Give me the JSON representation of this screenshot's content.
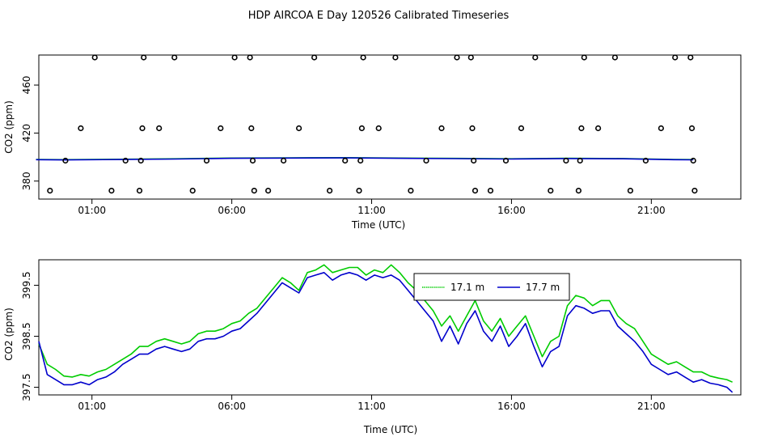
{
  "title": "HDP AIRCOA E  Day 120526  Calibrated Timeseries",
  "colors": {
    "green": "#00cc00",
    "blue": "#0000cc",
    "black": "#000000"
  },
  "chart_data": [
    {
      "type": "scatter",
      "xlabel": "Time (UTC)",
      "ylabel": "CO2 (ppm)",
      "xlim": [
        -0.9,
        24.2
      ],
      "ylim": [
        365,
        485
      ],
      "xticks": [
        1,
        6,
        11,
        16,
        21
      ],
      "xtick_labels": [
        "01:00",
        "06:00",
        "11:00",
        "16:00",
        "21:00"
      ],
      "yticks": [
        380,
        420,
        460
      ],
      "ytick_labels": [
        "380",
        "420",
        "460"
      ],
      "points": [
        {
          "x": -0.5,
          "y": 372
        },
        {
          "x": 0.05,
          "y": 397
        },
        {
          "x": 0.6,
          "y": 424
        },
        {
          "x": 1.1,
          "y": 483
        },
        {
          "x": 1.7,
          "y": 372
        },
        {
          "x": 2.2,
          "y": 397
        },
        {
          "x": 2.7,
          "y": 372
        },
        {
          "x": 2.75,
          "y": 397
        },
        {
          "x": 2.8,
          "y": 424
        },
        {
          "x": 2.85,
          "y": 483
        },
        {
          "x": 3.4,
          "y": 424
        },
        {
          "x": 3.95,
          "y": 483
        },
        {
          "x": 4.6,
          "y": 372
        },
        {
          "x": 5.1,
          "y": 397
        },
        {
          "x": 5.6,
          "y": 424
        },
        {
          "x": 6.1,
          "y": 483
        },
        {
          "x": 6.65,
          "y": 483
        },
        {
          "x": 6.7,
          "y": 424
        },
        {
          "x": 6.75,
          "y": 397
        },
        {
          "x": 6.8,
          "y": 372
        },
        {
          "x": 7.3,
          "y": 372
        },
        {
          "x": 7.85,
          "y": 397
        },
        {
          "x": 8.4,
          "y": 424
        },
        {
          "x": 8.95,
          "y": 483
        },
        {
          "x": 9.5,
          "y": 372
        },
        {
          "x": 10.05,
          "y": 397
        },
        {
          "x": 10.55,
          "y": 372
        },
        {
          "x": 10.6,
          "y": 397
        },
        {
          "x": 10.65,
          "y": 424
        },
        {
          "x": 10.7,
          "y": 483
        },
        {
          "x": 11.25,
          "y": 424
        },
        {
          "x": 11.85,
          "y": 483
        },
        {
          "x": 12.4,
          "y": 372
        },
        {
          "x": 12.95,
          "y": 397
        },
        {
          "x": 13.5,
          "y": 424
        },
        {
          "x": 14.05,
          "y": 483
        },
        {
          "x": 14.55,
          "y": 483
        },
        {
          "x": 14.6,
          "y": 424
        },
        {
          "x": 14.65,
          "y": 397
        },
        {
          "x": 14.7,
          "y": 372
        },
        {
          "x": 15.25,
          "y": 372
        },
        {
          "x": 15.8,
          "y": 397
        },
        {
          "x": 16.35,
          "y": 424
        },
        {
          "x": 16.85,
          "y": 483
        },
        {
          "x": 17.4,
          "y": 372
        },
        {
          "x": 17.95,
          "y": 397
        },
        {
          "x": 18.4,
          "y": 372
        },
        {
          "x": 18.45,
          "y": 397
        },
        {
          "x": 18.5,
          "y": 424
        },
        {
          "x": 18.6,
          "y": 483
        },
        {
          "x": 19.1,
          "y": 424
        },
        {
          "x": 19.7,
          "y": 483
        },
        {
          "x": 20.25,
          "y": 372
        },
        {
          "x": 20.8,
          "y": 397
        },
        {
          "x": 21.35,
          "y": 424
        },
        {
          "x": 21.85,
          "y": 483
        },
        {
          "x": 22.4,
          "y": 483
        },
        {
          "x": 22.45,
          "y": 424
        },
        {
          "x": 22.5,
          "y": 397
        },
        {
          "x": 22.55,
          "y": 372
        }
      ],
      "series": [
        {
          "color": "#00cc00",
          "x": [
            -1.0,
            0,
            2,
            4,
            6,
            8,
            10,
            12,
            14,
            16,
            18,
            20,
            21.8,
            22.5
          ],
          "y": [
            398,
            397.8,
            398.2,
            398.6,
            399.2,
            399.4,
            399.5,
            399.2,
            398.9,
            398.6,
            399,
            398.8,
            398,
            397.9
          ]
        },
        {
          "color": "#0000cc",
          "x": [
            -1.0,
            0,
            2,
            4,
            6,
            8,
            10,
            12,
            14,
            16,
            18,
            20,
            21.8,
            22.5
          ],
          "y": [
            397.8,
            397.6,
            398,
            398.4,
            399,
            399.2,
            399.3,
            399,
            398.7,
            398.4,
            398.8,
            398.6,
            397.8,
            397.7
          ]
        }
      ]
    },
    {
      "type": "line",
      "xlabel": "Time (UTC)",
      "ylabel": "CO2 (ppm)",
      "xlim": [
        -0.9,
        24.2
      ],
      "ylim": [
        397.35,
        400.0
      ],
      "xticks": [
        1,
        6,
        11,
        16,
        21
      ],
      "xtick_labels": [
        "01:00",
        "06:00",
        "11:00",
        "16:00",
        "21:00"
      ],
      "yticks": [
        397.5,
        398.5,
        399.5
      ],
      "ytick_labels": [
        "397.5",
        "398.5",
        "399.5"
      ],
      "legend": {
        "position": "top-right",
        "entries": [
          {
            "label": "17.1 m",
            "color": "#00cc00"
          },
          {
            "label": "17.7 m",
            "color": "#0000cc"
          }
        ]
      },
      "series": [
        {
          "name": "17.1 m",
          "color": "#00cc00",
          "x": [
            -0.9,
            -0.6,
            -0.3,
            0,
            0.3,
            0.6,
            0.9,
            1.2,
            1.5,
            1.8,
            2.1,
            2.4,
            2.7,
            3.0,
            3.3,
            3.6,
            3.9,
            4.2,
            4.5,
            4.8,
            5.1,
            5.4,
            5.7,
            6.0,
            6.3,
            6.6,
            6.9,
            7.2,
            7.5,
            7.8,
            8.1,
            8.4,
            8.7,
            9.0,
            9.3,
            9.6,
            9.9,
            10.2,
            10.5,
            10.8,
            11.1,
            11.4,
            11.7,
            12.0,
            12.3,
            12.6,
            12.9,
            13.2,
            13.5,
            13.8,
            14.1,
            14.4,
            14.7,
            15.0,
            15.3,
            15.6,
            15.9,
            16.2,
            16.5,
            16.8,
            17.1,
            17.4,
            17.7,
            18.0,
            18.3,
            18.6,
            18.9,
            19.2,
            19.5,
            19.8,
            20.1,
            20.4,
            20.7,
            21.0,
            21.3,
            21.6,
            21.9,
            22.2,
            22.5,
            22.8,
            23.1,
            23.4,
            23.7,
            23.9
          ],
          "y": [
            398.35,
            397.95,
            397.85,
            397.72,
            397.7,
            397.75,
            397.72,
            397.8,
            397.85,
            397.95,
            398.05,
            398.15,
            398.3,
            398.3,
            398.4,
            398.45,
            398.4,
            398.35,
            398.4,
            398.55,
            398.6,
            398.6,
            398.65,
            398.75,
            398.8,
            398.95,
            399.05,
            399.25,
            399.45,
            399.65,
            399.55,
            399.4,
            399.75,
            399.8,
            399.9,
            399.75,
            399.8,
            399.85,
            399.85,
            399.7,
            399.8,
            399.75,
            399.9,
            399.75,
            399.55,
            399.4,
            399.2,
            399.0,
            398.7,
            398.9,
            398.6,
            398.9,
            399.2,
            398.8,
            398.6,
            398.85,
            398.5,
            398.7,
            398.9,
            398.5,
            398.1,
            398.4,
            398.5,
            399.1,
            399.3,
            399.25,
            399.1,
            399.2,
            399.2,
            398.9,
            398.75,
            398.65,
            398.4,
            398.15,
            398.05,
            397.95,
            398.0,
            397.9,
            397.8,
            397.8,
            397.72,
            397.68,
            397.65,
            397.6
          ]
        },
        {
          "name": "17.7 m",
          "color": "#0000cc",
          "x": [
            -0.9,
            -0.6,
            -0.3,
            0,
            0.3,
            0.6,
            0.9,
            1.2,
            1.5,
            1.8,
            2.1,
            2.4,
            2.7,
            3.0,
            3.3,
            3.6,
            3.9,
            4.2,
            4.5,
            4.8,
            5.1,
            5.4,
            5.7,
            6.0,
            6.3,
            6.6,
            6.9,
            7.2,
            7.5,
            7.8,
            8.1,
            8.4,
            8.7,
            9.0,
            9.3,
            9.6,
            9.9,
            10.2,
            10.5,
            10.8,
            11.1,
            11.4,
            11.7,
            12.0,
            12.3,
            12.6,
            12.9,
            13.2,
            13.5,
            13.8,
            14.1,
            14.4,
            14.7,
            15.0,
            15.3,
            15.6,
            15.9,
            16.2,
            16.5,
            16.8,
            17.1,
            17.4,
            17.7,
            18.0,
            18.3,
            18.6,
            18.9,
            19.2,
            19.5,
            19.8,
            20.1,
            20.4,
            20.7,
            21.0,
            21.3,
            21.6,
            21.9,
            22.2,
            22.5,
            22.8,
            23.1,
            23.4,
            23.7,
            23.9
          ],
          "y": [
            398.4,
            397.75,
            397.65,
            397.55,
            397.55,
            397.6,
            397.55,
            397.65,
            397.7,
            397.8,
            397.95,
            398.05,
            398.15,
            398.15,
            398.25,
            398.3,
            398.25,
            398.2,
            398.25,
            398.4,
            398.45,
            398.45,
            398.5,
            398.6,
            398.65,
            398.8,
            398.95,
            399.15,
            399.35,
            399.55,
            399.45,
            399.35,
            399.65,
            399.7,
            399.75,
            399.6,
            399.7,
            399.75,
            399.7,
            399.6,
            399.7,
            399.65,
            399.7,
            399.6,
            399.4,
            399.2,
            399.0,
            398.8,
            398.4,
            398.7,
            398.35,
            398.75,
            399.0,
            398.6,
            398.4,
            398.7,
            398.3,
            398.5,
            398.75,
            398.3,
            397.9,
            398.2,
            398.3,
            398.9,
            399.1,
            399.05,
            398.95,
            399.0,
            399.0,
            398.7,
            398.55,
            398.4,
            398.2,
            397.95,
            397.85,
            397.75,
            397.8,
            397.7,
            397.6,
            397.65,
            397.58,
            397.55,
            397.5,
            397.4
          ]
        }
      ]
    }
  ]
}
